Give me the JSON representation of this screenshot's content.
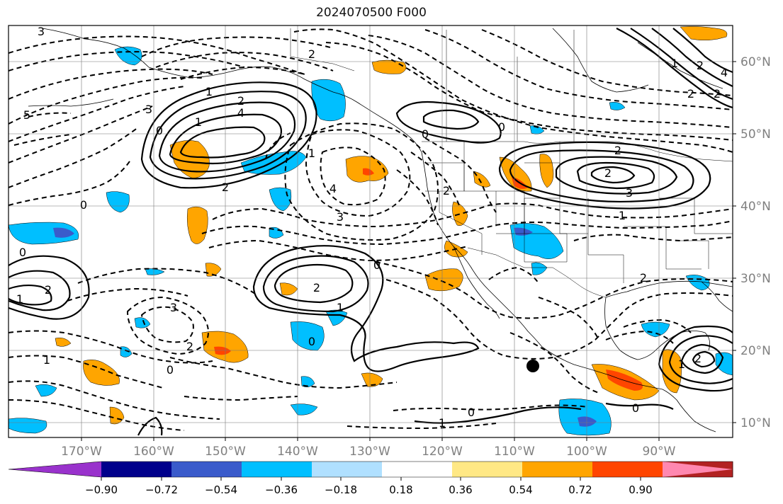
{
  "title": "2024070500 F000",
  "lon_labels": [
    "170°W",
    "160°W",
    "150°W",
    "140°W",
    "130°W",
    "120°W",
    "110°W",
    "100°W",
    "90°W"
  ],
  "lat_labels": [
    "60°N",
    "50°N",
    "40°N",
    "30°N",
    "20°N",
    "10°N"
  ],
  "colorbar": {
    "ticks": [
      "−0.90",
      "−0.72",
      "−0.54",
      "−0.36",
      "−0.18",
      "0.18",
      "0.36",
      "0.54",
      "0.72",
      "0.90"
    ],
    "colors": [
      "#9932CC",
      "#00008B",
      "#3A5BCB",
      "#00BFFF",
      "#B0E0FF",
      "#FFFFFF",
      "#FFE885",
      "#FFA500",
      "#FF4500",
      "#B22222",
      "#FF88B0"
    ]
  },
  "contour_labels": [
    "3",
    "2",
    "1",
    "5",
    "0",
    "4",
    "3",
    "1",
    "2",
    "0",
    "2",
    "0",
    "1",
    "4",
    "3",
    "2",
    "0",
    "2",
    "1",
    "2",
    "3",
    "0",
    "2",
    "0",
    "1",
    "2",
    "1",
    "3",
    "2",
    "4",
    "0",
    "1",
    "2",
    "0",
    "2",
    "1",
    "0",
    "2",
    "1",
    "0",
    "1",
    "2",
    "2"
  ],
  "marker": "black-dot"
}
